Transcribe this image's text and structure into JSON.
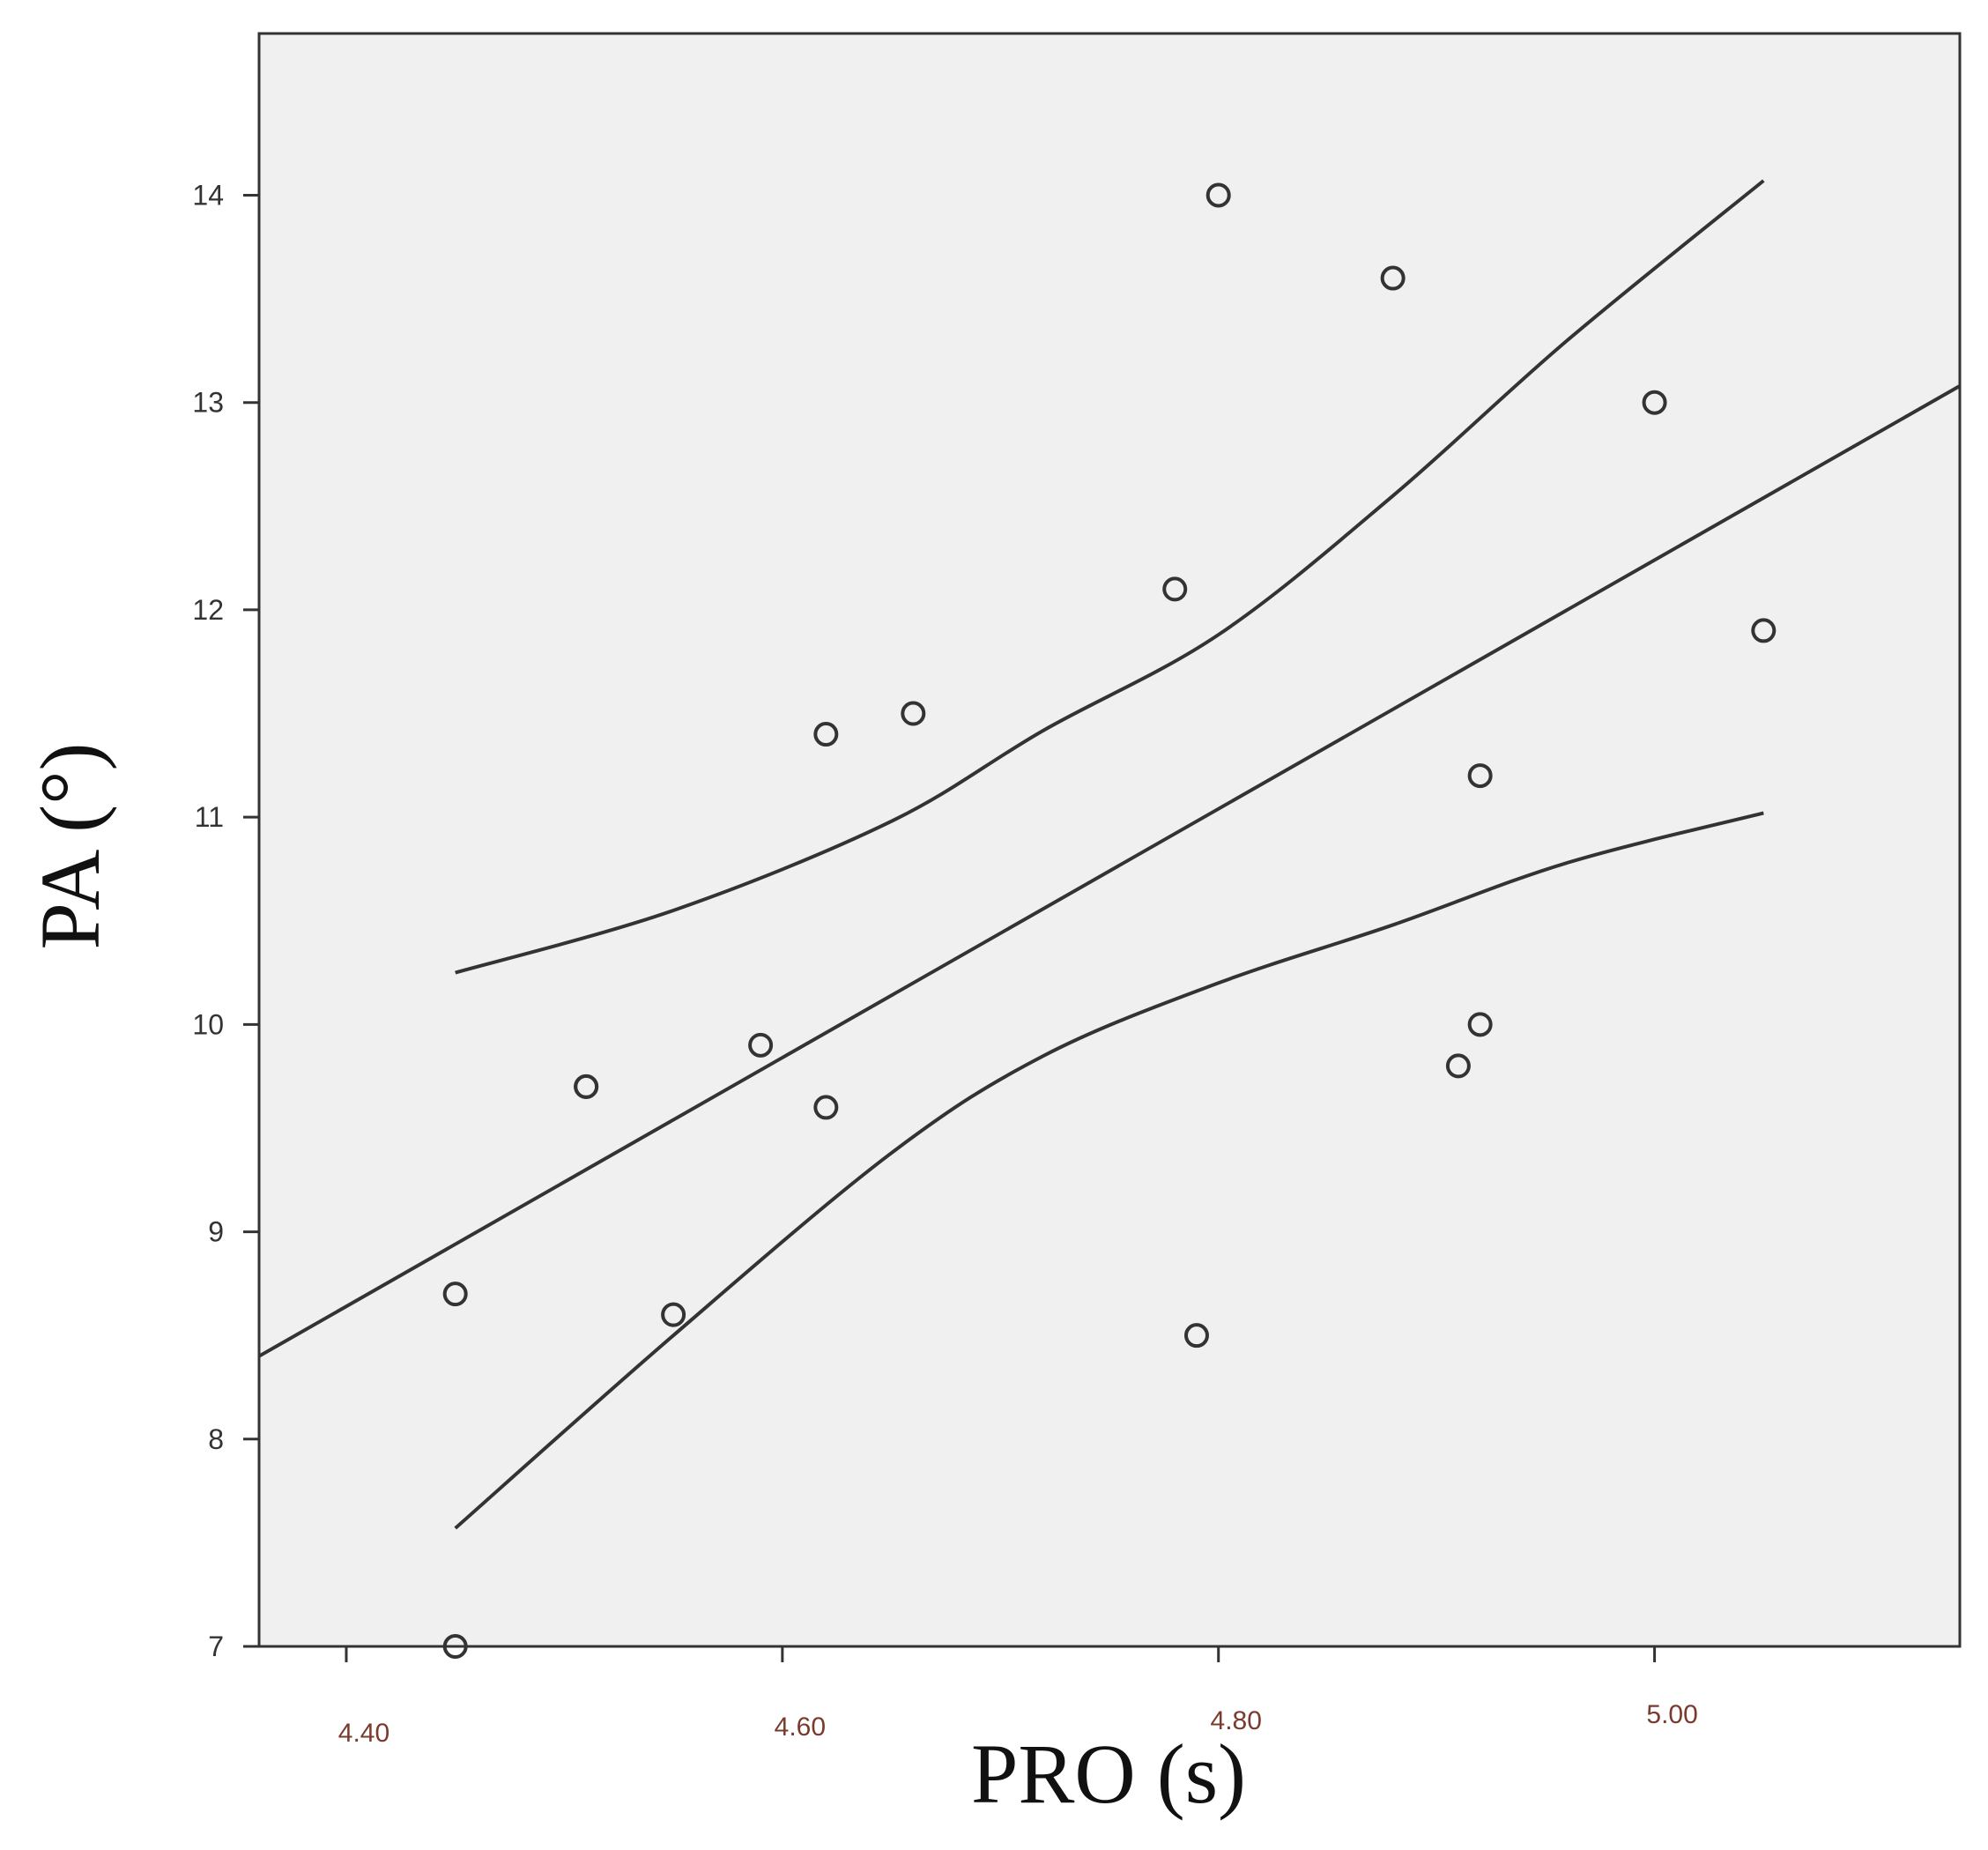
{
  "chart_data": {
    "type": "scatter",
    "title": "",
    "xlabel": "PRO (s)",
    "ylabel": "PA (°)",
    "xlim": [
      4.36,
      5.14
    ],
    "ylim": [
      7,
      14.78
    ],
    "x_ticks": [
      "4.40",
      "4.60",
      "4.80",
      "5.00"
    ],
    "x_tick_values": [
      4.4,
      4.6,
      4.8,
      5.0
    ],
    "y_ticks": [
      "7",
      "8",
      "9",
      "10",
      "11",
      "12",
      "13",
      "14"
    ],
    "y_tick_values": [
      7,
      8,
      9,
      10,
      11,
      12,
      13,
      14
    ],
    "grid": false,
    "points": [
      {
        "x": 4.45,
        "y": 7.0
      },
      {
        "x": 4.45,
        "y": 8.7
      },
      {
        "x": 4.51,
        "y": 9.7
      },
      {
        "x": 4.51,
        "y": 9.7
      },
      {
        "x": 4.55,
        "y": 8.6
      },
      {
        "x": 4.59,
        "y": 9.9
      },
      {
        "x": 4.62,
        "y": 9.6
      },
      {
        "x": 4.62,
        "y": 11.4
      },
      {
        "x": 4.66,
        "y": 11.5
      },
      {
        "x": 4.78,
        "y": 12.1
      },
      {
        "x": 4.79,
        "y": 8.5
      },
      {
        "x": 4.8,
        "y": 14.0
      },
      {
        "x": 4.88,
        "y": 13.6
      },
      {
        "x": 4.91,
        "y": 9.8
      },
      {
        "x": 4.92,
        "y": 10.0
      },
      {
        "x": 4.92,
        "y": 11.2
      },
      {
        "x": 5.0,
        "y": 13.0
      },
      {
        "x": 5.05,
        "y": 11.9
      }
    ],
    "fit_line": [
      {
        "x": 4.36,
        "y": 8.4
      },
      {
        "x": 5.14,
        "y": 13.08
      }
    ],
    "ci_upper": [
      {
        "x": 4.45,
        "y": 10.25
      },
      {
        "x": 4.55,
        "y": 10.55
      },
      {
        "x": 4.65,
        "y": 10.98
      },
      {
        "x": 4.72,
        "y": 11.42
      },
      {
        "x": 4.8,
        "y": 11.88
      },
      {
        "x": 4.88,
        "y": 12.55
      },
      {
        "x": 4.96,
        "y": 13.3
      },
      {
        "x": 5.05,
        "y": 14.07
      }
    ],
    "ci_lower": [
      {
        "x": 4.45,
        "y": 7.57
      },
      {
        "x": 4.55,
        "y": 8.5
      },
      {
        "x": 4.65,
        "y": 9.38
      },
      {
        "x": 4.72,
        "y": 9.85
      },
      {
        "x": 4.8,
        "y": 10.2
      },
      {
        "x": 4.88,
        "y": 10.48
      },
      {
        "x": 4.96,
        "y": 10.78
      },
      {
        "x": 5.05,
        "y": 11.02
      }
    ],
    "colors": {
      "plot_background": "#f0f0f0",
      "frame": "#333333",
      "lines": "#333333",
      "markers": "#333333",
      "x_tick_labels": "#7a3b2e"
    }
  }
}
